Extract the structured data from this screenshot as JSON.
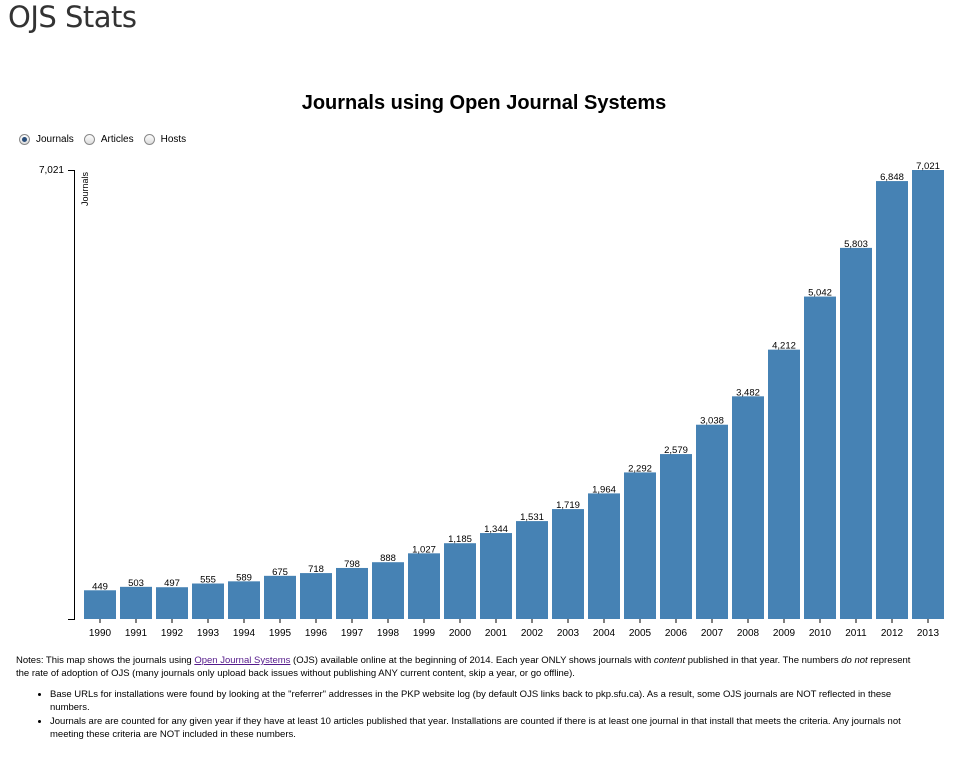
{
  "page": {
    "title": "OJS Stats"
  },
  "controls": {
    "options": [
      {
        "label": "Journals",
        "checked": true
      },
      {
        "label": "Articles",
        "checked": false
      },
      {
        "label": "Hosts",
        "checked": false
      }
    ]
  },
  "chart_data": {
    "type": "bar",
    "title": "Journals using Open Journal Systems",
    "ylabel": "Journals",
    "xlabel": "",
    "ylim": [
      0,
      7021
    ],
    "y_ticks": [
      "7,021"
    ],
    "bar_color": "#4682b4",
    "categories": [
      "1990",
      "1991",
      "1992",
      "1993",
      "1994",
      "1995",
      "1996",
      "1997",
      "1998",
      "1999",
      "2000",
      "2001",
      "2002",
      "2003",
      "2004",
      "2005",
      "2006",
      "2007",
      "2008",
      "2009",
      "2010",
      "2011",
      "2012",
      "2013"
    ],
    "values": [
      449,
      503,
      497,
      555,
      589,
      675,
      718,
      798,
      888,
      1027,
      1185,
      1344,
      1531,
      1719,
      1964,
      2292,
      2579,
      3038,
      3482,
      4212,
      5042,
      5803,
      6848,
      7021
    ],
    "value_labels": [
      "449",
      "503",
      "497",
      "555",
      "589",
      "675",
      "718",
      "798",
      "888",
      "1,027",
      "1,185",
      "1,344",
      "1,531",
      "1,719",
      "1,964",
      "2,292",
      "2,579",
      "3,038",
      "3,482",
      "4,212",
      "5,042",
      "5,803",
      "6,848",
      "7,021"
    ]
  },
  "notes": {
    "intro_before_link": "Notes: This map shows the journals using ",
    "link_text": "Open Journal Systems",
    "intro_after_link": " (OJS) available online at the beginning of 2014. Each year ONLY shows journals with ",
    "content_word": "content",
    "intro_mid": " published in that year. The numbers ",
    "do_not": "do not",
    "intro_end": " represent the rate of adoption of OJS (many journals only upload back issues without publishing ANY current content, skip a year, or go offline).",
    "bullets": [
      "Base URLs for installations were found by looking at the \"referrer\" addresses in the PKP website log (by default OJS links back to pkp.sfu.ca). As a result, some OJS journals are NOT reflected in these numbers.",
      "Journals are are counted for any given year if they have at least 10 articles published that year. Installations are counted if there is at least one journal in that install that meets the criteria. Any journals not meeting these criteria are NOT included in these numbers."
    ]
  }
}
